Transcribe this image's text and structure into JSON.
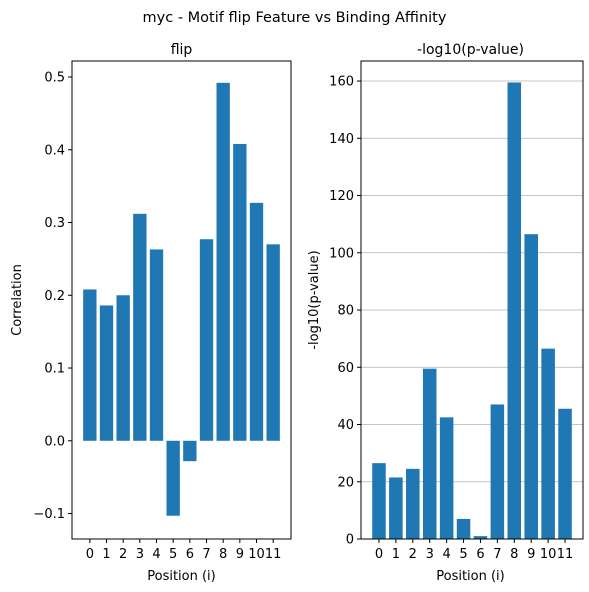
{
  "suptitle": "myc - Motif flip Feature vs Binding Affinity",
  "colors": {
    "bar": "#1f77b4",
    "grid": "#b0b0b0",
    "axis": "#000000"
  },
  "chart_data": [
    {
      "type": "bar",
      "title": "flip",
      "xlabel": "Position (i)",
      "ylabel": "Correlation",
      "categories": [
        "0",
        "1",
        "2",
        "3",
        "4",
        "5",
        "6",
        "7",
        "8",
        "9",
        "10",
        "11"
      ],
      "values": [
        0.208,
        0.186,
        0.2,
        0.312,
        0.263,
        -0.103,
        -0.028,
        0.277,
        0.492,
        0.408,
        0.327,
        0.27
      ],
      "ylim": [
        -0.135,
        0.522
      ],
      "yticks": [
        -0.1,
        0.0,
        0.1,
        0.2,
        0.3,
        0.4,
        0.5
      ],
      "ytick_labels": [
        "−0.1",
        "0.0",
        "0.1",
        "0.2",
        "0.3",
        "0.4",
        "0.5"
      ],
      "grid": false
    },
    {
      "type": "bar",
      "title": "-log10(p-value)",
      "xlabel": "Position (i)",
      "ylabel": "-log10(p-value)",
      "categories": [
        "0",
        "1",
        "2",
        "3",
        "4",
        "5",
        "6",
        "7",
        "8",
        "9",
        "10",
        "11"
      ],
      "values": [
        26.5,
        21.5,
        24.5,
        59.5,
        42.5,
        7.0,
        1.0,
        47.0,
        159.5,
        106.5,
        66.5,
        45.5
      ],
      "ylim": [
        0,
        167
      ],
      "yticks": [
        0,
        20,
        40,
        60,
        80,
        100,
        120,
        140,
        160
      ],
      "ytick_labels": [
        "0",
        "20",
        "40",
        "60",
        "80",
        "100",
        "120",
        "140",
        "160"
      ],
      "grid": true
    }
  ]
}
